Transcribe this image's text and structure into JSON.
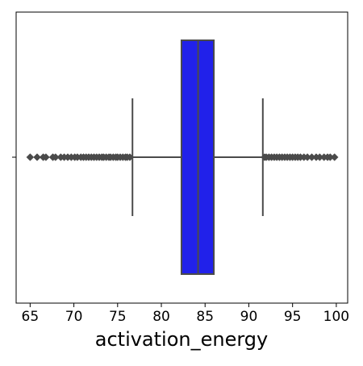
{
  "chart_data": {
    "type": "box",
    "orientation": "horizontal",
    "title": "",
    "xlabel": "activation_energy",
    "ylabel": "",
    "xlim": [
      63.4,
      101.3
    ],
    "x_ticks": [
      65,
      70,
      75,
      80,
      85,
      90,
      95,
      100
    ],
    "x_tick_labels": [
      "65",
      "70",
      "75",
      "80",
      "85",
      "90",
      "95",
      "100"
    ],
    "y_ticks": [
      ""
    ],
    "grid": false,
    "legend": "none",
    "box_color": "#2121ea",
    "line_color": "#4a4a4a",
    "series": [
      {
        "q1": 82.3,
        "median": 84.2,
        "q3": 86.0,
        "whisker_low": 76.7,
        "whisker_high": 91.6,
        "outliers_low": [
          65.0,
          65.8,
          66.5,
          66.8,
          67.6,
          67.9,
          68.5,
          68.9,
          69.3,
          69.7,
          70.1,
          70.4,
          70.8,
          71.1,
          71.4,
          71.7,
          72.0,
          72.3,
          72.6,
          72.9,
          73.2,
          73.4,
          73.7,
          74.0,
          74.2,
          74.5,
          74.8,
          75.0,
          75.3,
          75.6,
          75.9,
          76.1,
          76.4
        ],
        "outliers_high": [
          91.8,
          92.0,
          92.3,
          92.6,
          92.9,
          93.2,
          93.5,
          93.8,
          94.1,
          94.4,
          94.7,
          95.0,
          95.3,
          95.6,
          95.9,
          96.3,
          96.7,
          97.2,
          97.7,
          98.1,
          98.6,
          99.0,
          99.3,
          99.8
        ]
      }
    ]
  }
}
